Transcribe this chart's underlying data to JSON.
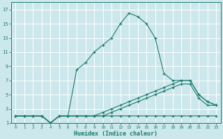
{
  "xlabel": "Humidex (Indice chaleur)",
  "xlim": [
    -0.5,
    23.5
  ],
  "ylim": [
    1,
    18
  ],
  "xticks": [
    0,
    1,
    2,
    3,
    4,
    5,
    6,
    7,
    8,
    9,
    10,
    11,
    12,
    13,
    14,
    15,
    16,
    17,
    18,
    19,
    20,
    21,
    22,
    23
  ],
  "yticks": [
    1,
    3,
    5,
    7,
    9,
    11,
    13,
    15,
    17
  ],
  "bg_color": "#cde8ec",
  "grid_color": "#b0d8de",
  "line_color": "#1a7a6e",
  "series": [
    {
      "x": [
        0,
        1,
        2,
        3,
        4,
        5,
        6,
        7,
        8,
        9,
        10,
        11,
        12,
        13,
        14,
        15,
        16,
        17,
        18,
        19,
        20,
        21,
        22,
        23
      ],
      "y": [
        2,
        2,
        2,
        2,
        1,
        2,
        2,
        8.5,
        9.5,
        11,
        12,
        13,
        15,
        16.5,
        16,
        15,
        13,
        8,
        7,
        7,
        7,
        5,
        4,
        3.5
      ]
    },
    {
      "x": [
        0,
        1,
        2,
        3,
        4,
        5,
        6,
        7,
        8,
        9,
        10,
        11,
        12,
        13,
        14,
        15,
        16,
        17,
        18,
        19,
        20,
        21,
        22,
        23
      ],
      "y": [
        2,
        2,
        2,
        2,
        1,
        2,
        2,
        2,
        2,
        2,
        2.5,
        3,
        3.5,
        4,
        4.5,
        5,
        5.5,
        6,
        6.5,
        7,
        7,
        5,
        4,
        3.5
      ]
    },
    {
      "x": [
        0,
        1,
        2,
        3,
        4,
        5,
        6,
        7,
        8,
        9,
        10,
        11,
        12,
        13,
        14,
        15,
        16,
        17,
        18,
        19,
        20,
        21,
        22,
        23
      ],
      "y": [
        2,
        2,
        2,
        2,
        1,
        2,
        2,
        2,
        2,
        2,
        2,
        2.5,
        3,
        3.5,
        4,
        4.5,
        5,
        5.5,
        6,
        6.5,
        6.5,
        4.5,
        3.5,
        3.5
      ]
    },
    {
      "x": [
        0,
        1,
        2,
        3,
        4,
        5,
        6,
        7,
        8,
        9,
        10,
        11,
        12,
        13,
        14,
        15,
        16,
        17,
        18,
        19,
        20,
        21,
        22,
        23
      ],
      "y": [
        2,
        2,
        2,
        2,
        1,
        2,
        2,
        2,
        2,
        2,
        2,
        2,
        2,
        2,
        2,
        2,
        2,
        2,
        2,
        2,
        2,
        2,
        2,
        2
      ]
    }
  ]
}
